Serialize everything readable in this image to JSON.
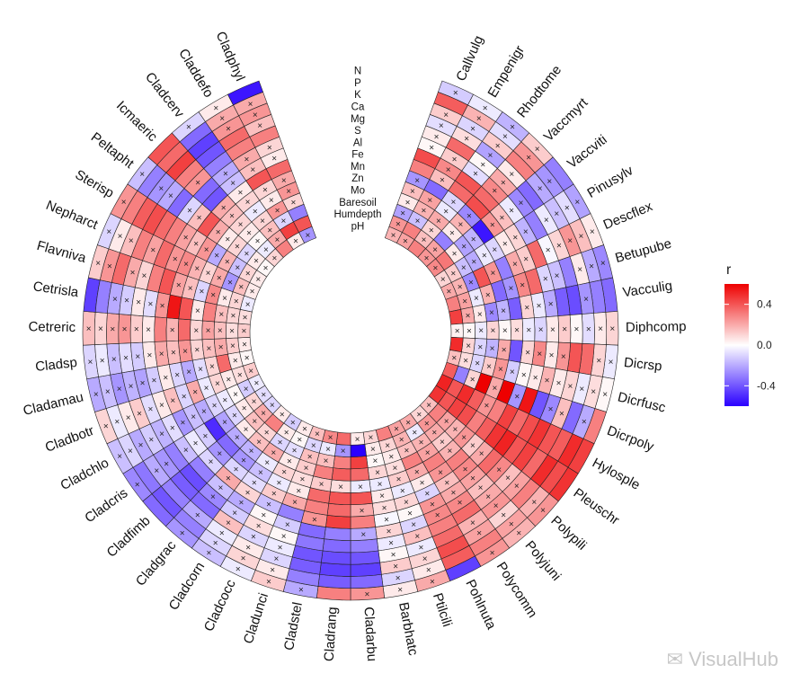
{
  "chart_data": {
    "type": "heatmap",
    "layout": "circular",
    "gap_degrees": 40,
    "variables": [
      "N",
      "P",
      "K",
      "Ca",
      "Mg",
      "S",
      "Al",
      "Fe",
      "Mn",
      "Zn",
      "Mo",
      "Baresoil",
      "Humdepth",
      "pH"
    ],
    "species": [
      "Callvulg",
      "Empenigr",
      "Rhodtome",
      "Vaccmyrt",
      "Vaccviti",
      "Pinusylv",
      "Descflex",
      "Betupube",
      "Vacculig",
      "Diphcomp",
      "Dicrsp",
      "Dicrfusc",
      "Dicrpoly",
      "Hylosple",
      "Pleuschr",
      "Polypili",
      "Polyjuni",
      "Polycomm",
      "Pohlnuta",
      "Ptilcili",
      "Barbhatc",
      "Cladarbu",
      "Cladrang",
      "Cladstel",
      "Cladunci",
      "Cladcocc",
      "Cladcorn",
      "Cladgrac",
      "Cladfimb",
      "Cladcris",
      "Cladchlo",
      "Cladbotr",
      "Cladamau",
      "Cladsp",
      "Cetreric",
      "Cetrisla",
      "Flavniva",
      "Nepharct",
      "Sterisp",
      "Peltapht",
      "Icmaeric",
      "Cladcerv",
      "Claddefo",
      "Cladphyl"
    ],
    "legend": {
      "title": "r",
      "ticks": [
        0.4,
        0.0,
        -0.4
      ],
      "tick_labels": [
        "0.4",
        "0.0",
        "-0.4"
      ],
      "range": [
        -0.6,
        0.6
      ]
    },
    "colors": {
      "negative": "#2a00ff",
      "neutral": "#ffffff",
      "positive": "#ee0000"
    },
    "cross_mark": "×",
    "values": [
      [
        -0.12,
        0.38,
        0.12,
        -0.08,
        0.05,
        0.02,
        0.42,
        0.3,
        -0.25,
        0.15,
        0.05,
        -0.22,
        0.25,
        0.18
      ],
      [
        -0.05,
        0.18,
        -0.1,
        0.08,
        0.35,
        0.12,
        0.28,
        0.15,
        -0.35,
        0.22,
        0.18,
        -0.15,
        0.3,
        0.22
      ],
      [
        -0.18,
        -0.08,
        0.12,
        -0.22,
        0.02,
        -0.08,
        0.4,
        0.35,
        -0.1,
        -0.05,
        0.2,
        0.1,
        0.15,
        0.3
      ],
      [
        0.12,
        0.25,
        0.3,
        0.05,
        0.2,
        0.28,
        0.35,
        0.42,
        -0.28,
        0.18,
        0.05,
        -0.3,
        0.22,
        0.25
      ],
      [
        -0.3,
        -0.25,
        -0.2,
        -0.35,
        -0.28,
        -0.05,
        0.15,
        0.25,
        -0.55,
        -0.18,
        -0.22,
        0.05,
        0.32,
        0.28
      ],
      [
        -0.22,
        -0.08,
        -0.15,
        -0.05,
        -0.3,
        -0.18,
        0.1,
        0.05,
        -0.1,
        -0.05,
        -0.2,
        -0.15,
        0.12,
        0.1
      ],
      [
        0.05,
        0.15,
        0.25,
        0.1,
        -0.02,
        0.35,
        0.12,
        0.2,
        -0.3,
        0.25,
        0.4,
        -0.28,
        0.18,
        0.2
      ],
      [
        -0.28,
        -0.2,
        0.05,
        -0.3,
        -0.15,
        -0.1,
        0.35,
        0.28,
        -0.25,
        -0.35,
        0.18,
        -0.05,
        0.22,
        0.3
      ],
      [
        -0.35,
        -0.3,
        -0.25,
        -0.42,
        -0.38,
        -0.2,
        -0.05,
        0.1,
        -0.38,
        -0.18,
        -0.28,
        0.05,
        0.2,
        0.45
      ],
      [
        0.1,
        0.05,
        -0.08,
        0.02,
        0.12,
        0.05,
        -0.1,
        -0.05,
        0.08,
        0.02,
        0.1,
        -0.05,
        0.02,
        0.03
      ],
      [
        -0.05,
        0.1,
        0.35,
        0.4,
        0.25,
        0.05,
        0.28,
        0.1,
        -0.4,
        0.2,
        -0.18,
        -0.1,
        0.1,
        0.5
      ],
      [
        0.02,
        0.08,
        -0.05,
        0.1,
        0.05,
        0.18,
        0.05,
        0.02,
        -0.12,
        0.25,
        0.12,
        -0.1,
        0.08,
        0.15
      ],
      [
        0.3,
        -0.2,
        -0.35,
        0.15,
        -0.28,
        -0.4,
        0.55,
        -0.25,
        0.62,
        0.2,
        0.6,
        0.1,
        -0.3,
        0.38
      ],
      [
        0.45,
        0.5,
        0.38,
        0.4,
        0.48,
        0.42,
        0.35,
        0.45,
        0.3,
        0.25,
        0.38,
        0.5,
        0.4,
        0.52
      ],
      [
        0.48,
        0.42,
        0.5,
        0.35,
        0.45,
        0.4,
        0.52,
        0.48,
        0.38,
        0.3,
        0.42,
        0.45,
        0.4,
        0.48
      ],
      [
        0.25,
        0.18,
        0.3,
        0.22,
        0.15,
        0.28,
        0.35,
        0.2,
        0.12,
        0.25,
        0.18,
        0.22,
        0.3,
        0.15
      ],
      [
        0.18,
        0.22,
        0.1,
        0.25,
        0.2,
        0.15,
        0.22,
        0.28,
        0.3,
        0.18,
        0.12,
        0.2,
        0.25,
        0.1
      ],
      [
        0.25,
        0.3,
        0.22,
        0.18,
        0.35,
        0.28,
        0.2,
        0.15,
        0.25,
        0.3,
        0.22,
        0.18,
        -0.05,
        0.2
      ],
      [
        -0.45,
        0.38,
        0.42,
        0.35,
        0.3,
        0.28,
        0.25,
        -0.1,
        0.05,
        0.2,
        0.3,
        0.15,
        0.18,
        0.22
      ],
      [
        0.2,
        0.05,
        0.1,
        -0.05,
        0.15,
        -0.1,
        0.02,
        0.1,
        -0.05,
        0.12,
        0.08,
        0.05,
        0.1,
        0.3
      ],
      [
        0.05,
        -0.1,
        0.12,
        0.02,
        -0.05,
        0.1,
        -0.02,
        0.08,
        0.05,
        -0.05,
        0.1,
        0.02,
        0.05,
        0.1
      ],
      [
        0.25,
        -0.35,
        -0.45,
        -0.4,
        -0.3,
        -0.2,
        0.3,
        0.2,
        0.4,
        -0.05,
        0.35,
        0.45,
        -0.6,
        0.05
      ],
      [
        0.3,
        -0.38,
        -0.45,
        -0.42,
        -0.35,
        -0.3,
        0.45,
        0.35,
        0.4,
        0.08,
        0.38,
        0.3,
        -0.25,
        0.35
      ],
      [
        -0.2,
        -0.3,
        -0.38,
        -0.4,
        -0.32,
        -0.35,
        0.25,
        0.3,
        0.35,
        0.12,
        0.3,
        0.15,
        -0.05,
        0.28
      ],
      [
        0.12,
        0.05,
        -0.1,
        -0.05,
        0.02,
        -0.12,
        -0.3,
        0.2,
        0.05,
        0.08,
        0.12,
        0.15,
        -0.1,
        0.15
      ],
      [
        -0.05,
        0.1,
        0.05,
        -0.1,
        0.08,
        0.02,
        -0.15,
        0.12,
        -0.05,
        0.1,
        0.05,
        -0.08,
        0.02,
        0.05
      ],
      [
        -0.15,
        -0.1,
        -0.05,
        0.15,
        -0.12,
        -0.2,
        0.1,
        -0.08,
        -0.15,
        -0.05,
        0.2,
        -0.1,
        0.05,
        -0.12
      ],
      [
        -0.25,
        -0.3,
        -0.2,
        -0.35,
        -0.28,
        -0.15,
        0.2,
        -0.1,
        -0.25,
        -0.18,
        0.15,
        0.1,
        0.3,
        0.05
      ],
      [
        -0.35,
        -0.4,
        -0.3,
        -0.38,
        -0.42,
        -0.3,
        -0.1,
        -0.25,
        -0.35,
        -0.2,
        0.05,
        0.15,
        0.2,
        -0.1
      ],
      [
        -0.28,
        -0.32,
        -0.2,
        -0.25,
        -0.3,
        -0.15,
        -0.05,
        -0.12,
        -0.5,
        -0.22,
        -0.1,
        0.05,
        0.1,
        -0.08
      ],
      [
        -0.15,
        -0.1,
        -0.2,
        -0.12,
        -0.18,
        -0.08,
        -0.25,
        -0.15,
        -0.2,
        -0.1,
        -0.05,
        0.02,
        -0.12,
        -0.05
      ],
      [
        0.1,
        -0.05,
        0.05,
        0.12,
        -0.08,
        0.05,
        0.15,
        -0.1,
        0.2,
        -0.05,
        0.1,
        0.05,
        0.08,
        0.12
      ],
      [
        -0.2,
        -0.15,
        -0.25,
        -0.18,
        -0.22,
        -0.12,
        0.05,
        -0.1,
        -0.2,
        -0.08,
        0.1,
        0.35,
        0.05,
        0.02
      ],
      [
        -0.1,
        -0.05,
        -0.15,
        -0.08,
        -0.12,
        0.05,
        0.2,
        0.15,
        0.25,
        0.1,
        0.15,
        0.2,
        0.12,
        0.05
      ],
      [
        0.15,
        0.1,
        0.2,
        0.25,
        0.12,
        0.05,
        0.3,
        0.18,
        0.35,
        0.1,
        0.22,
        0.15,
        0.08,
        0.12
      ],
      [
        -0.45,
        -0.3,
        -0.2,
        -0.12,
        0.05,
        -0.08,
        0.25,
        0.55,
        0.4,
        0.05,
        0.3,
        0.15,
        0.1,
        0.08
      ],
      [
        0.12,
        0.25,
        0.35,
        0.2,
        0.1,
        0.3,
        0.4,
        0.22,
        0.15,
        -0.1,
        0.28,
        0.05,
        0.1,
        -0.05
      ],
      [
        -0.1,
        0.05,
        0.15,
        0.3,
        0.22,
        0.35,
        0.25,
        0.28,
        0.18,
        0.1,
        0.2,
        -0.25,
        0.15,
        0.05
      ],
      [
        0.25,
        0.3,
        0.38,
        0.42,
        0.35,
        0.3,
        0.22,
        0.15,
        0.25,
        -0.2,
        0.18,
        -0.15,
        0.1,
        0.05
      ],
      [
        -0.15,
        -0.3,
        -0.25,
        -0.2,
        -0.35,
        -0.1,
        0.15,
        0.4,
        0.2,
        0.05,
        0.1,
        -0.1,
        0.05,
        0.02
      ],
      [
        0.4,
        0.35,
        0.45,
        0.3,
        0.25,
        -0.35,
        -0.4,
        0.2,
        0.15,
        0.1,
        0.05,
        0.02,
        -0.05,
        0.1
      ],
      [
        -0.1,
        -0.35,
        -0.45,
        -0.4,
        -0.3,
        -0.2,
        -0.15,
        0.05,
        0.1,
        -0.05,
        0.1,
        0.15,
        0.2,
        0.3
      ],
      [
        0.05,
        0.2,
        0.25,
        0.35,
        0.3,
        0.2,
        0.15,
        0.4,
        0.1,
        0.05,
        0.25,
        -0.1,
        0.45,
        0.05
      ],
      [
        -0.55,
        0.2,
        0.25,
        0.15,
        0.3,
        0.1,
        0.05,
        0.35,
        0.2,
        0.25,
        0.1,
        -0.3,
        0.4,
        -0.25
      ]
    ]
  }
}
